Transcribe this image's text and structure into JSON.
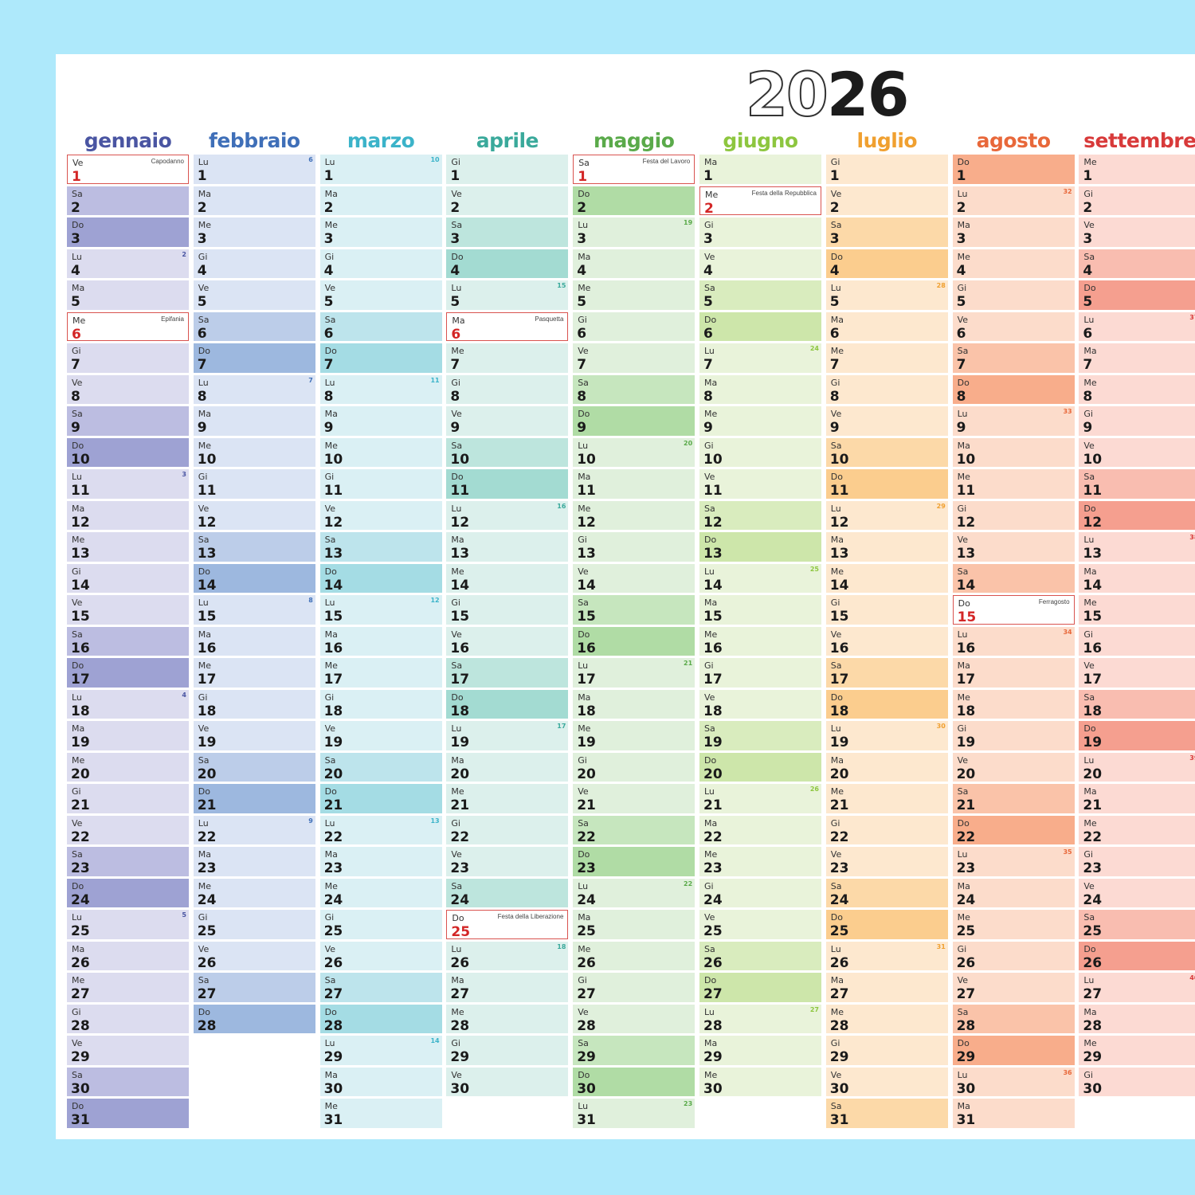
{
  "calendar": {
    "year_light": "20",
    "year_dark": "26",
    "months": [
      {
        "name": "gennaio",
        "start": 4,
        "days": 31,
        "color": "#4a55a2",
        "weekday_bg": "#dcdcef",
        "sat_bg": "#bcbde1",
        "sun_bg": "#9ea2d3",
        "wk_color": "#4a55a2",
        "holidays": [
          {
            "day": 1,
            "label": "Capodanno"
          },
          {
            "day": 6,
            "label": "Epifania"
          }
        ]
      },
      {
        "name": "febbraio",
        "start": 0,
        "days": 28,
        "color": "#3f6fb8",
        "weekday_bg": "#dbe4f4",
        "sat_bg": "#bccde9",
        "sun_bg": "#9db8df",
        "wk_color": "#3f6fb8",
        "holidays": []
      },
      {
        "name": "marzo",
        "start": 0,
        "days": 31,
        "color": "#3bb3c9",
        "weekday_bg": "#daf0f4",
        "sat_bg": "#bde4ec",
        "sun_bg": "#a4dce4",
        "wk_color": "#3bb3c9",
        "holidays": []
      },
      {
        "name": "aprile",
        "start": 3,
        "days": 30,
        "color": "#3aa99b",
        "weekday_bg": "#dcf0ec",
        "sat_bg": "#bde5dd",
        "sun_bg": "#a3dbd2",
        "wk_color": "#3aa99b",
        "holidays": [
          {
            "day": 6,
            "label": "Pasquetta"
          },
          {
            "day": 25,
            "label": "Festa della Liberazione"
          }
        ]
      },
      {
        "name": "maggio",
        "start": 5,
        "days": 31,
        "color": "#5aaa4a",
        "weekday_bg": "#e0f0dc",
        "sat_bg": "#c6e6be",
        "sun_bg": "#b0dca5",
        "wk_color": "#5aaa4a",
        "holidays": [
          {
            "day": 1,
            "label": "Festa del Lavoro"
          }
        ]
      },
      {
        "name": "giugno",
        "start": 1,
        "days": 30,
        "color": "#8dc63f",
        "weekday_bg": "#e9f3da",
        "sat_bg": "#d9ecbe",
        "sun_bg": "#cde6aa",
        "wk_color": "#8dc63f",
        "holidays": [
          {
            "day": 2,
            "label": "Festa della Repubblica"
          }
        ]
      },
      {
        "name": "luglio",
        "start": 3,
        "days": 31,
        "color": "#f0a030",
        "weekday_bg": "#fde8cf",
        "sat_bg": "#fcd9a8",
        "sun_bg": "#fbcd8e",
        "wk_color": "#f0a030",
        "holidays": []
      },
      {
        "name": "agosto",
        "start": 6,
        "days": 31,
        "color": "#e8683a",
        "weekday_bg": "#fcdccb",
        "sat_bg": "#fac3a9",
        "sun_bg": "#f8ad8b",
        "wk_color": "#e8683a",
        "holidays": [
          {
            "day": 15,
            "label": "Ferragosto"
          }
        ]
      },
      {
        "name": "settembre",
        "start": 2,
        "days": 30,
        "color": "#d83a3a",
        "weekday_bg": "#fcdad3",
        "sat_bg": "#f9bdb0",
        "sun_bg": "#f59f8f",
        "wk_color": "#d83a3a",
        "holidays": []
      }
    ],
    "weekday_abbrev": [
      "Lu",
      "Ma",
      "Me",
      "Gi",
      "Ve",
      "Sa",
      "Do"
    ]
  }
}
